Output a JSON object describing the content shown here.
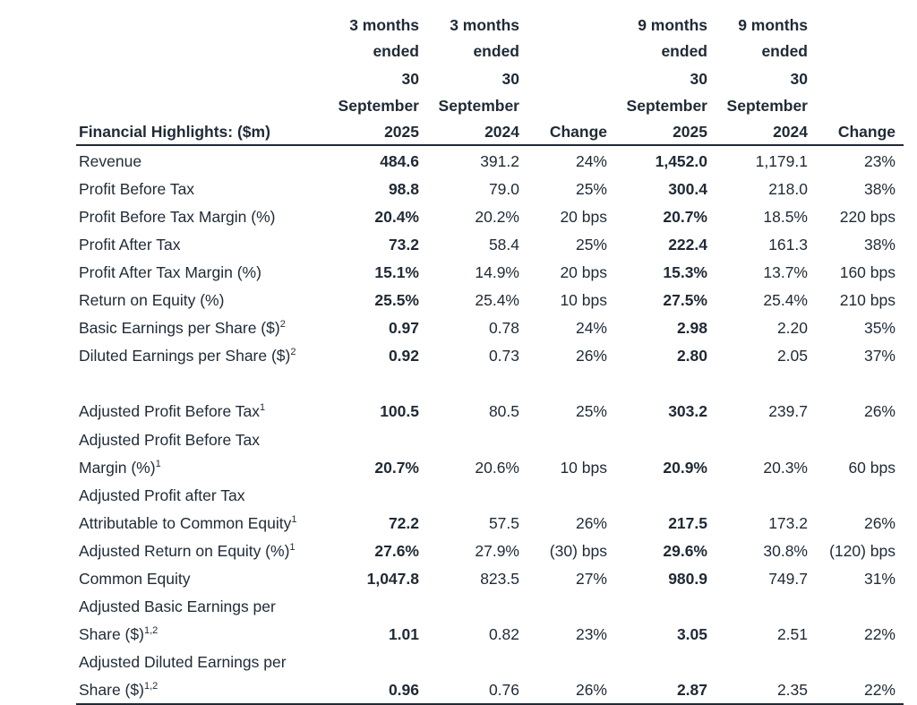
{
  "headers": {
    "label": "Financial Highlights: ($m)",
    "columns": [
      {
        "lines": [
          "3 months",
          "ended",
          "30",
          "September",
          "2025"
        ]
      },
      {
        "lines": [
          "3 months",
          "ended",
          "30",
          "September",
          "2024"
        ]
      },
      {
        "lines": [
          "Change"
        ]
      },
      {
        "lines": [
          "9 months",
          "ended",
          "30",
          "September",
          "2025"
        ]
      },
      {
        "lines": [
          "9 months",
          "ended",
          "30",
          "September",
          "2024"
        ]
      },
      {
        "lines": [
          "Change"
        ]
      }
    ]
  },
  "table": {
    "rows": [
      {
        "label": [
          "Revenue"
        ],
        "values": [
          "484.6",
          "391.2",
          "24%",
          "1,452.0",
          "1,179.1",
          "23%"
        ]
      },
      {
        "label": [
          "Profit Before Tax"
        ],
        "values": [
          "98.8",
          "79.0",
          "25%",
          "300.4",
          "218.0",
          "38%"
        ]
      },
      {
        "label": [
          "Profit Before Tax Margin (%)"
        ],
        "values": [
          "20.4%",
          "20.2%",
          "20 bps",
          "20.7%",
          "18.5%",
          "220 bps"
        ]
      },
      {
        "label": [
          "Profit After Tax"
        ],
        "values": [
          "73.2",
          "58.4",
          "25%",
          "222.4",
          "161.3",
          "38%"
        ]
      },
      {
        "label": [
          "Profit After Tax Margin (%)"
        ],
        "values": [
          "15.1%",
          "14.9%",
          "20 bps",
          "15.3%",
          "13.7%",
          "160 bps"
        ]
      },
      {
        "label": [
          "Return on Equity (%)"
        ],
        "values": [
          "25.5%",
          "25.4%",
          "10 bps",
          "27.5%",
          "25.4%",
          "210 bps"
        ]
      },
      {
        "label": [
          "Basic Earnings per Share ($)"
        ],
        "note": "2",
        "values": [
          "0.97",
          "0.78",
          "24%",
          "2.98",
          "2.20",
          "35%"
        ]
      },
      {
        "label": [
          "Diluted Earnings per Share ($)"
        ],
        "note": "2",
        "values": [
          "0.92",
          "0.73",
          "26%",
          "2.80",
          "2.05",
          "37%"
        ]
      },
      {
        "label": [
          "Adjusted Profit Before Tax"
        ],
        "note": "1",
        "values": [
          "100.5",
          "80.5",
          "25%",
          "303.2",
          "239.7",
          "26%"
        ]
      },
      {
        "label": [
          "Adjusted Profit Before Tax",
          "Margin (%)"
        ],
        "note": "1",
        "values": [
          "20.7%",
          "20.6%",
          "10 bps",
          "20.9%",
          "20.3%",
          "60 bps"
        ]
      },
      {
        "label": [
          "Adjusted Profit after Tax",
          "Attributable to Common Equity"
        ],
        "note": "1",
        "values": [
          "72.2",
          "57.5",
          "26%",
          "217.5",
          "173.2",
          "26%"
        ]
      },
      {
        "label": [
          "Adjusted Return on Equity (%)"
        ],
        "note": "1",
        "values": [
          "27.6%",
          "27.9%",
          "(30) bps",
          "29.6%",
          "30.8%",
          "(120) bps"
        ]
      },
      {
        "label": [
          "Common Equity"
        ],
        "values": [
          "1,047.8",
          "823.5",
          "27%",
          "980.9",
          "749.7",
          "31%"
        ]
      },
      {
        "label": [
          "Adjusted Basic Earnings per",
          "Share ($)"
        ],
        "note": "1,2",
        "values": [
          "1.01",
          "0.82",
          "23%",
          "3.05",
          "2.51",
          "22%"
        ]
      },
      {
        "label": [
          "Adjusted Diluted Earnings per",
          "Share ($)"
        ],
        "note": "1,2",
        "values": [
          "0.96",
          "0.76",
          "26%",
          "2.87",
          "2.35",
          "22%"
        ]
      }
    ]
  }
}
